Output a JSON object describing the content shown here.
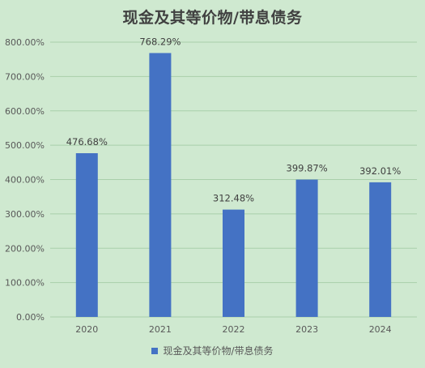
{
  "chart_data": {
    "type": "bar",
    "title": "现金及其等价物/带息债务",
    "categories": [
      "2020",
      "2021",
      "2022",
      "2023",
      "2024"
    ],
    "series": [
      {
        "name": "现金及其等价物/带息债务",
        "values": [
          476.68,
          768.29,
          312.48,
          399.87,
          392.01
        ],
        "data_labels": [
          "476.68%",
          "768.29%",
          "312.48%",
          "399.87%",
          "392.01%"
        ]
      }
    ],
    "ylim": [
      0,
      800
    ],
    "yticks": [
      0,
      100,
      200,
      300,
      400,
      500,
      600,
      700,
      800
    ],
    "ytick_labels": [
      "0.00%",
      "100.00%",
      "200.00%",
      "300.00%",
      "400.00%",
      "500.00%",
      "600.00%",
      "700.00%",
      "800.00%"
    ],
    "grid": true,
    "legend_position": "bottom",
    "colors": {
      "bar": "#4472c4",
      "grid": "#a9cfaa",
      "background": "#cfe9d0"
    }
  }
}
